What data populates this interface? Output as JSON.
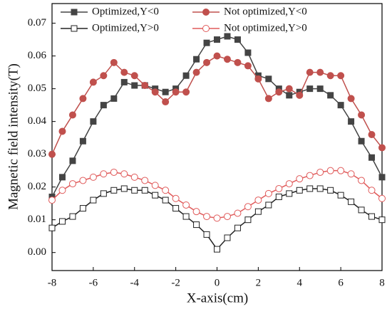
{
  "chart_data": {
    "type": "line",
    "x_label": "X-axis(cm)",
    "y_label": "Magnetic field intensity(T)",
    "x": [
      -8,
      -7.5,
      -7,
      -6.5,
      -6,
      -5.5,
      -5,
      -4.5,
      -4,
      -3.5,
      -3,
      -2.5,
      -2,
      -1.5,
      -1,
      -0.5,
      0,
      0.5,
      1,
      1.5,
      2,
      2.5,
      3,
      3.5,
      4,
      4.5,
      5,
      5.5,
      6,
      6.5,
      7,
      7.5,
      8
    ],
    "series": [
      {
        "name": "Optimized,Y<0",
        "color": "#444444",
        "marker": "square",
        "filled": true,
        "values": [
          0.017,
          0.023,
          0.028,
          0.034,
          0.04,
          0.045,
          0.047,
          0.052,
          0.051,
          0.051,
          0.05,
          0.049,
          0.05,
          0.054,
          0.059,
          0.064,
          0.065,
          0.066,
          0.065,
          0.061,
          0.054,
          0.053,
          0.05,
          0.048,
          0.049,
          0.05,
          0.05,
          0.048,
          0.045,
          0.04,
          0.034,
          0.029,
          0.023
        ]
      },
      {
        "name": "Not optimized,Y<0",
        "color": "#c0504d",
        "marker": "circle",
        "filled": true,
        "values": [
          0.03,
          0.037,
          0.042,
          0.047,
          0.052,
          0.054,
          0.058,
          0.055,
          0.054,
          0.051,
          0.049,
          0.046,
          0.049,
          0.049,
          0.055,
          0.058,
          0.06,
          0.059,
          0.058,
          0.057,
          0.053,
          0.047,
          0.049,
          0.05,
          0.048,
          0.055,
          0.055,
          0.054,
          0.054,
          0.047,
          0.042,
          0.036,
          0.032
        ]
      },
      {
        "name": "Optimized,Y>0",
        "color": "#222222",
        "marker": "square",
        "filled": false,
        "values": [
          0.0075,
          0.0095,
          0.011,
          0.0135,
          0.016,
          0.018,
          0.019,
          0.0195,
          0.019,
          0.019,
          0.0175,
          0.016,
          0.0135,
          0.011,
          0.0085,
          0.0055,
          0.001,
          0.0045,
          0.0075,
          0.01,
          0.0125,
          0.0145,
          0.017,
          0.018,
          0.019,
          0.0195,
          0.0195,
          0.019,
          0.0175,
          0.0155,
          0.013,
          0.011,
          0.01
        ]
      },
      {
        "name": "Not optimized,Y>0",
        "color": "#e05a5a",
        "marker": "circle",
        "filled": false,
        "values": [
          0.016,
          0.019,
          0.021,
          0.022,
          0.023,
          0.024,
          0.0245,
          0.024,
          0.023,
          0.022,
          0.0205,
          0.019,
          0.0165,
          0.0145,
          0.0125,
          0.011,
          0.0105,
          0.011,
          0.012,
          0.014,
          0.016,
          0.018,
          0.0195,
          0.021,
          0.0225,
          0.0235,
          0.0245,
          0.025,
          0.025,
          0.024,
          0.022,
          0.019,
          0.0165
        ]
      }
    ],
    "xlim": [
      -8,
      8
    ],
    "xticks": [
      -8,
      -6,
      -4,
      -2,
      0,
      2,
      4,
      6,
      8
    ],
    "ylim": [
      -0.0055,
      0.076
    ],
    "yticks": [
      {
        "value": 0,
        "label": "0.00"
      },
      {
        "value": 0.01,
        "label": "0.01"
      },
      {
        "value": 0.02,
        "label": "0.02"
      },
      {
        "value": 0.03,
        "label": "0.03"
      },
      {
        "value": 0.04,
        "label": "0.04"
      },
      {
        "value": 0.05,
        "label": "0.05"
      },
      {
        "value": 0.06,
        "label": "0.06"
      },
      {
        "value": 0.07,
        "label": "0.07"
      }
    ],
    "grid": false
  }
}
